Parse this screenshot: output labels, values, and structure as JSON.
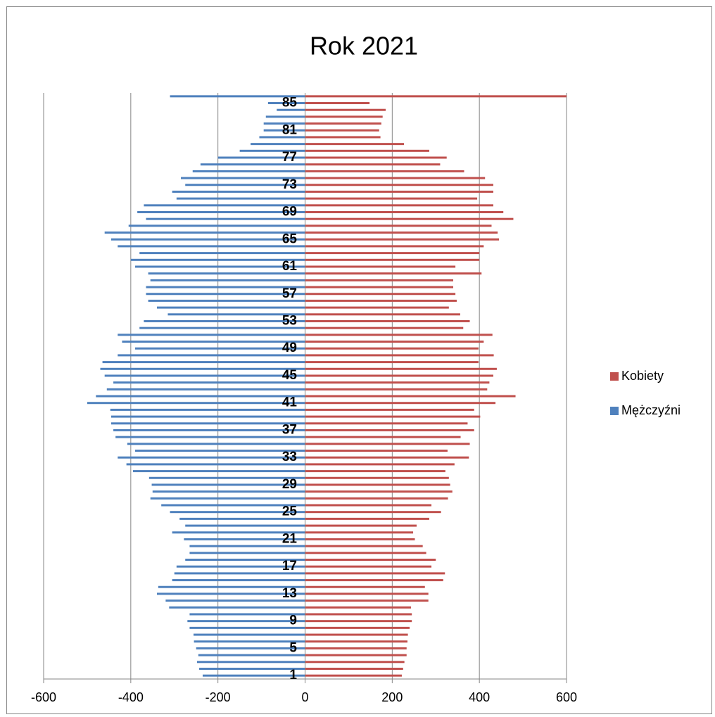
{
  "chart_data": {
    "type": "bar",
    "orientation": "horizontal",
    "title": "Rok 2021",
    "categories": [
      "1",
      null,
      null,
      null,
      "5",
      null,
      null,
      null,
      "9",
      null,
      null,
      null,
      "13",
      null,
      null,
      null,
      "17",
      null,
      null,
      null,
      "21",
      null,
      null,
      null,
      "25",
      null,
      null,
      null,
      "29",
      null,
      null,
      null,
      "33",
      null,
      null,
      null,
      "37",
      null,
      null,
      null,
      "41",
      null,
      null,
      null,
      "45",
      null,
      null,
      null,
      "49",
      null,
      null,
      null,
      "53",
      null,
      null,
      null,
      "57",
      null,
      null,
      null,
      "61",
      null,
      null,
      null,
      "65",
      null,
      null,
      null,
      "69",
      null,
      null,
      null,
      "73",
      null,
      null,
      null,
      "77",
      null,
      null,
      null,
      "81",
      null,
      null,
      null,
      "85",
      null
    ],
    "series": [
      {
        "name": "Kobiety",
        "color": "#c0504d",
        "values": [
          222,
          225,
          228,
          233,
          233,
          235,
          236,
          240,
          245,
          245,
          243,
          283,
          283,
          275,
          317,
          321,
          290,
          300,
          278,
          270,
          252,
          248,
          256,
          285,
          312,
          290,
          328,
          338,
          333,
          330,
          322,
          343,
          376,
          327,
          378,
          357,
          388,
          373,
          402,
          388,
          437,
          483,
          418,
          423,
          432,
          440,
          398,
          433,
          398,
          410,
          430,
          363,
          378,
          356,
          330,
          348,
          345,
          340,
          340,
          405,
          345,
          400,
          400,
          410,
          445,
          442,
          428,
          478,
          455,
          432,
          395,
          432,
          432,
          413,
          365,
          310,
          325,
          285,
          227,
          173,
          170,
          175,
          178,
          185,
          148,
          600
        ]
      },
      {
        "name": "Mężczyźni",
        "color": "#4f81bd",
        "values": [
          -235,
          -243,
          -248,
          -245,
          -250,
          -255,
          -256,
          -265,
          -270,
          -265,
          -312,
          -320,
          -340,
          -337,
          -305,
          -300,
          -295,
          -275,
          -265,
          -265,
          -278,
          -305,
          -275,
          -288,
          -310,
          -330,
          -355,
          -350,
          -352,
          -358,
          -395,
          -410,
          -430,
          -390,
          -408,
          -435,
          -440,
          -445,
          -445,
          -447,
          -500,
          -480,
          -455,
          -440,
          -460,
          -470,
          -465,
          -430,
          -390,
          -420,
          -430,
          -380,
          -370,
          -315,
          -340,
          -360,
          -365,
          -365,
          -355,
          -360,
          -390,
          -400,
          -380,
          -430,
          -445,
          -460,
          -405,
          -365,
          -385,
          -370,
          -295,
          -305,
          -275,
          -285,
          -258,
          -240,
          -200,
          -150,
          -125,
          -105,
          -95,
          -95,
          -90,
          -65,
          -85,
          -310
        ]
      }
    ],
    "xlim": [
      -600,
      600
    ],
    "xticks": [
      -600,
      -400,
      -200,
      0,
      200,
      400,
      600
    ],
    "grid": true,
    "legend": "right"
  }
}
